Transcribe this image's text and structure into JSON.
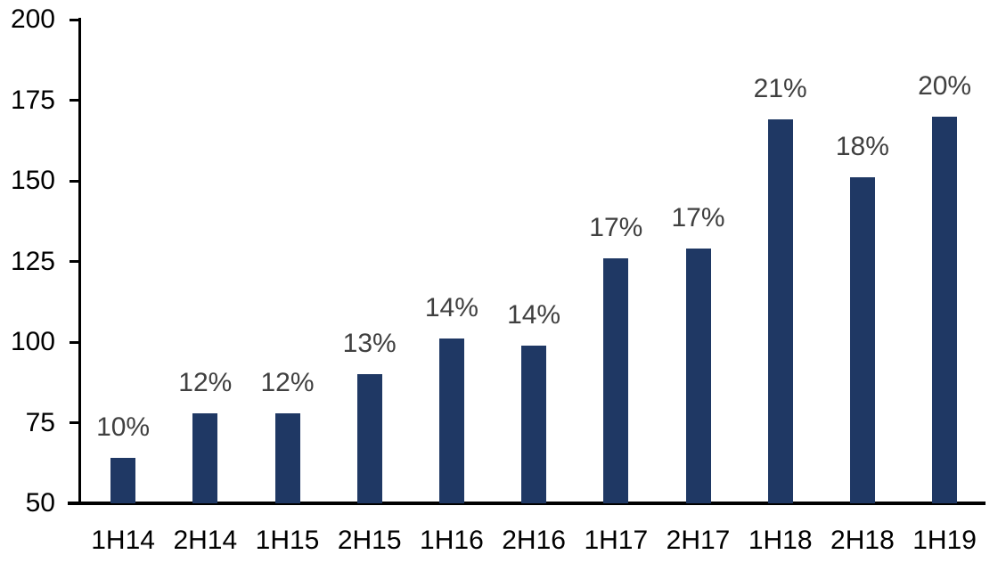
{
  "chart_data": {
    "type": "bar",
    "categories": [
      "1H14",
      "2H14",
      "1H15",
      "2H15",
      "1H16",
      "2H16",
      "1H17",
      "2H17",
      "1H18",
      "2H18",
      "1H19"
    ],
    "values": [
      64,
      78,
      78,
      90,
      101,
      99,
      126,
      129,
      169,
      151,
      170
    ],
    "bar_labels": [
      "10%",
      "12%",
      "12%",
      "13%",
      "14%",
      "14%",
      "17%",
      "17%",
      "21%",
      "18%",
      "20%"
    ],
    "title": "",
    "xlabel": "",
    "ylabel": "",
    "ylim": [
      50,
      200
    ],
    "yticks": [
      200,
      175,
      150,
      125,
      100,
      75,
      50
    ],
    "grid": false,
    "legend": "none",
    "colors": {
      "bar": "#1F3864",
      "data_label": "#404040",
      "axis": "#000000",
      "background": "#FFFFFF"
    }
  }
}
